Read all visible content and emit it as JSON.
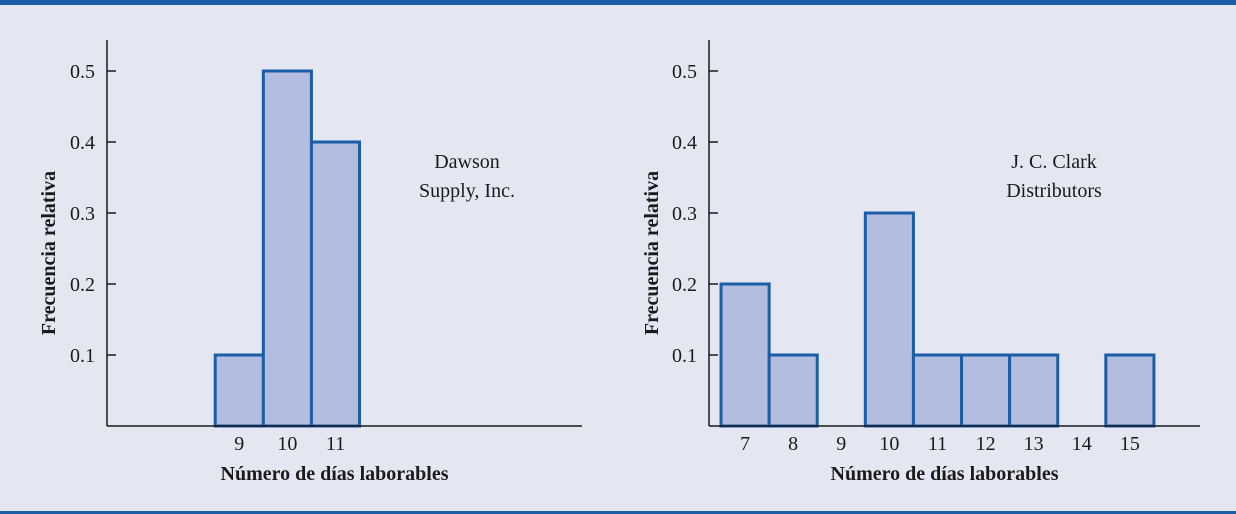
{
  "colors": {
    "bar_fill": "#b3bddf",
    "bar_stroke": "#1b5ea8",
    "background": "#e4e7f2",
    "rule": "#1b5ea8"
  },
  "chart_data": [
    {
      "type": "bar",
      "ylabel": "Frecuencia relativa",
      "xlabel": "Número de días laborables",
      "annotation": [
        "Dawson",
        "Supply, Inc."
      ],
      "categories": [
        "9",
        "10",
        "11"
      ],
      "values": [
        0.1,
        0.5,
        0.4
      ],
      "x_ticks": [
        "9",
        "10",
        "11"
      ],
      "y_ticks": [
        "0.1",
        "0.2",
        "0.3",
        "0.4",
        "0.5"
      ],
      "ylim": [
        0,
        0.5
      ],
      "xlim": [
        6.25,
        15.75
      ]
    },
    {
      "type": "bar",
      "ylabel": "Frecuencia relativa",
      "xlabel": "Número de días laborables",
      "annotation": [
        "J. C. Clark",
        "Distributors"
      ],
      "categories": [
        "7",
        "8",
        "9",
        "10",
        "11",
        "12",
        "13",
        "14",
        "15"
      ],
      "values": [
        0.2,
        0.1,
        0,
        0.3,
        0.1,
        0.1,
        0.1,
        0,
        0.1
      ],
      "x_ticks": [
        "7",
        "8",
        "9",
        "10",
        "11",
        "12",
        "13",
        "14",
        "15"
      ],
      "y_ticks": [
        "0.1",
        "0.2",
        "0.3",
        "0.4",
        "0.5"
      ],
      "ylim": [
        0,
        0.5
      ],
      "xlim": [
        6.25,
        15.75
      ]
    }
  ]
}
